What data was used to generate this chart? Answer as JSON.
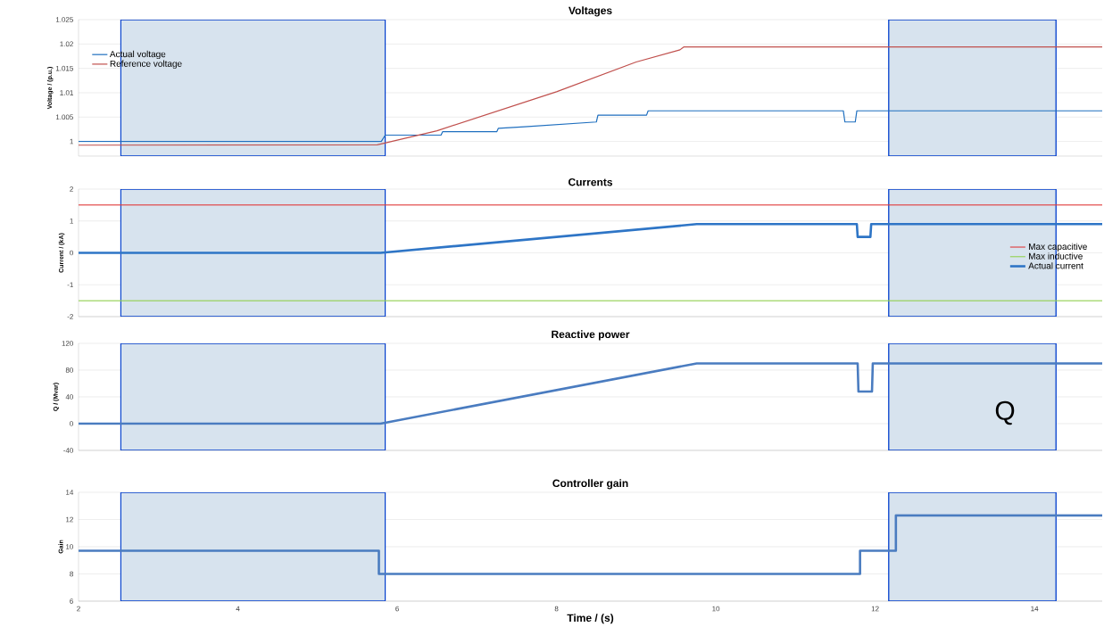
{
  "chart_data": [
    {
      "type": "line",
      "title": "Voltages",
      "ylabel": "Voltage / (p.u.)",
      "xlim": [
        2,
        14.85
      ],
      "xticks": [
        2,
        4,
        6,
        8,
        10,
        12,
        14
      ],
      "ylim": [
        0.997,
        1.025
      ],
      "yticks": [
        1,
        1.005,
        1.01,
        1.015,
        1.02,
        1.025
      ],
      "tick_labels": "y",
      "grid": "y",
      "legend": "top left",
      "bands": [
        {
          "axis": "x",
          "from": 2.53,
          "to": 5.85,
          "color": "#d7e3ee"
        },
        {
          "axis": "x",
          "from": 12.17,
          "to": 14.27,
          "color": "#d7e3ee"
        }
      ],
      "series": [
        {
          "name": "Actual voltage",
          "color": "#1f6fbf",
          "x": [
            2,
            5.8,
            5.85,
            6.55,
            6.57,
            7.25,
            7.27,
            7.6,
            8.5,
            8.52,
            9.13,
            9.15,
            11.6,
            11.62,
            11.75,
            11.77,
            14.85
          ],
          "values": [
            1.0,
            1.0,
            1.0013,
            1.0013,
            1.002,
            1.002,
            1.0027,
            1.003,
            1.004,
            1.0054,
            1.0054,
            1.0063,
            1.0063,
            1.004,
            1.004,
            1.0063,
            1.0063
          ]
        },
        {
          "name": "Reference voltage",
          "color": "#c0504d",
          "x": [
            2,
            5.75,
            6.5,
            8.0,
            9.0,
            9.55,
            9.6,
            14.85
          ],
          "values": [
            0.9992,
            0.9993,
            1.0022,
            1.0102,
            1.0163,
            1.0188,
            1.0194,
            1.0194
          ]
        }
      ]
    },
    {
      "type": "line",
      "title": "Currents",
      "ylabel": "Current / (kA)",
      "xlim": [
        2,
        14.85
      ],
      "xticks": [
        2,
        4,
        6,
        8,
        10,
        12,
        14
      ],
      "ylim": [
        -2,
        2
      ],
      "yticks": [
        -2,
        -1,
        0,
        1,
        2
      ],
      "tick_labels": "y",
      "grid": "y",
      "legend": "right",
      "bands": [
        {
          "axis": "x",
          "from": 2.53,
          "to": 5.85,
          "color": "#d7e3ee"
        },
        {
          "axis": "x",
          "from": 12.17,
          "to": 14.27,
          "color": "#d7e3ee"
        }
      ],
      "series": [
        {
          "name": "Max capacitive",
          "color": "#e03c3c",
          "x": [
            2,
            14.85
          ],
          "values": [
            1.5,
            1.5
          ]
        },
        {
          "name": "Max inductive",
          "color": "#92d050",
          "x": [
            2,
            14.85
          ],
          "values": [
            -1.5,
            -1.5
          ]
        },
        {
          "name": "Actual current",
          "color": "#2e75c6",
          "x": [
            2,
            5.79,
            9.76,
            11.77,
            11.78,
            11.94,
            11.95,
            14.85
          ],
          "values": [
            0,
            0,
            0.9,
            0.9,
            0.5,
            0.5,
            0.9,
            0.9
          ]
        }
      ]
    },
    {
      "type": "line",
      "title": "Reactive power",
      "ylabel": "Q / (Mvar)",
      "xlim": [
        2,
        14.85
      ],
      "xticks": [
        2,
        4,
        6,
        8,
        10,
        12,
        14
      ],
      "ylim": [
        -40,
        120
      ],
      "yticks": [
        -40,
        0,
        40,
        80,
        120
      ],
      "tick_labels": "y",
      "grid": "y",
      "annotations": [
        "Q"
      ],
      "bands": [
        {
          "axis": "x",
          "from": 2.53,
          "to": 5.85,
          "color": "#d7e3ee"
        },
        {
          "axis": "x",
          "from": 12.17,
          "to": 14.27,
          "color": "#d7e3ee"
        }
      ],
      "series": [
        {
          "color": "#4a7cc0",
          "x": [
            2,
            5.79,
            9.76,
            11.78,
            11.79,
            11.96,
            11.97,
            14.85
          ],
          "values": [
            0,
            0,
            90,
            90,
            48,
            48,
            90,
            90
          ]
        }
      ]
    },
    {
      "type": "line",
      "title": "Controller gain",
      "xlabel": "Time / (s)",
      "ylabel": "Gain",
      "xlim": [
        2,
        14.85
      ],
      "xticks": [
        2,
        4,
        6,
        8,
        10,
        12,
        14
      ],
      "ylim": [
        6,
        14
      ],
      "yticks": [
        6,
        8,
        10,
        12,
        14
      ],
      "grid": "y",
      "bands": [
        {
          "axis": "x",
          "from": 2.53,
          "to": 5.85,
          "color": "#d7e3ee"
        },
        {
          "axis": "x",
          "from": 12.17,
          "to": 14.27,
          "color": "#d7e3ee"
        }
      ],
      "series": [
        {
          "color": "#4a7cc0",
          "x": [
            2,
            5.77,
            5.77,
            11.81,
            11.81,
            12.26,
            12.26,
            14.85
          ],
          "values": [
            9.7,
            9.7,
            8,
            8,
            9.7,
            9.7,
            12.3,
            12.3
          ]
        }
      ]
    }
  ]
}
